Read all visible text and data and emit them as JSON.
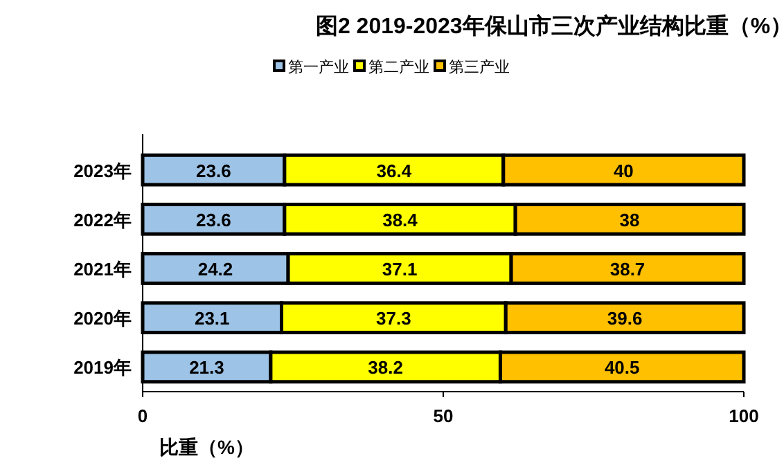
{
  "chart_data": {
    "type": "bar",
    "orientation": "horizontal",
    "stacked": true,
    "title": "图2   2019-2023年保山市三次产业结构比重（%）",
    "xlabel": "比重（%）",
    "categories": [
      "2023年",
      "2022年",
      "2021年",
      "2020年",
      "2019年"
    ],
    "series": [
      {
        "name": "第一产业",
        "color": "#9dc3e6",
        "values": [
          23.6,
          23.6,
          24.2,
          23.1,
          21.3
        ]
      },
      {
        "name": "第二产业",
        "color": "#ffff00",
        "values": [
          36.4,
          38.4,
          37.1,
          37.3,
          38.2
        ]
      },
      {
        "name": "第三产业",
        "color": "#ffc000",
        "values": [
          40,
          38,
          38.7,
          39.6,
          40.5
        ]
      }
    ],
    "xlim": [
      0,
      100
    ],
    "xticks": [
      0,
      50,
      100
    ],
    "data_labels": true,
    "legend": "top",
    "grid": false
  }
}
